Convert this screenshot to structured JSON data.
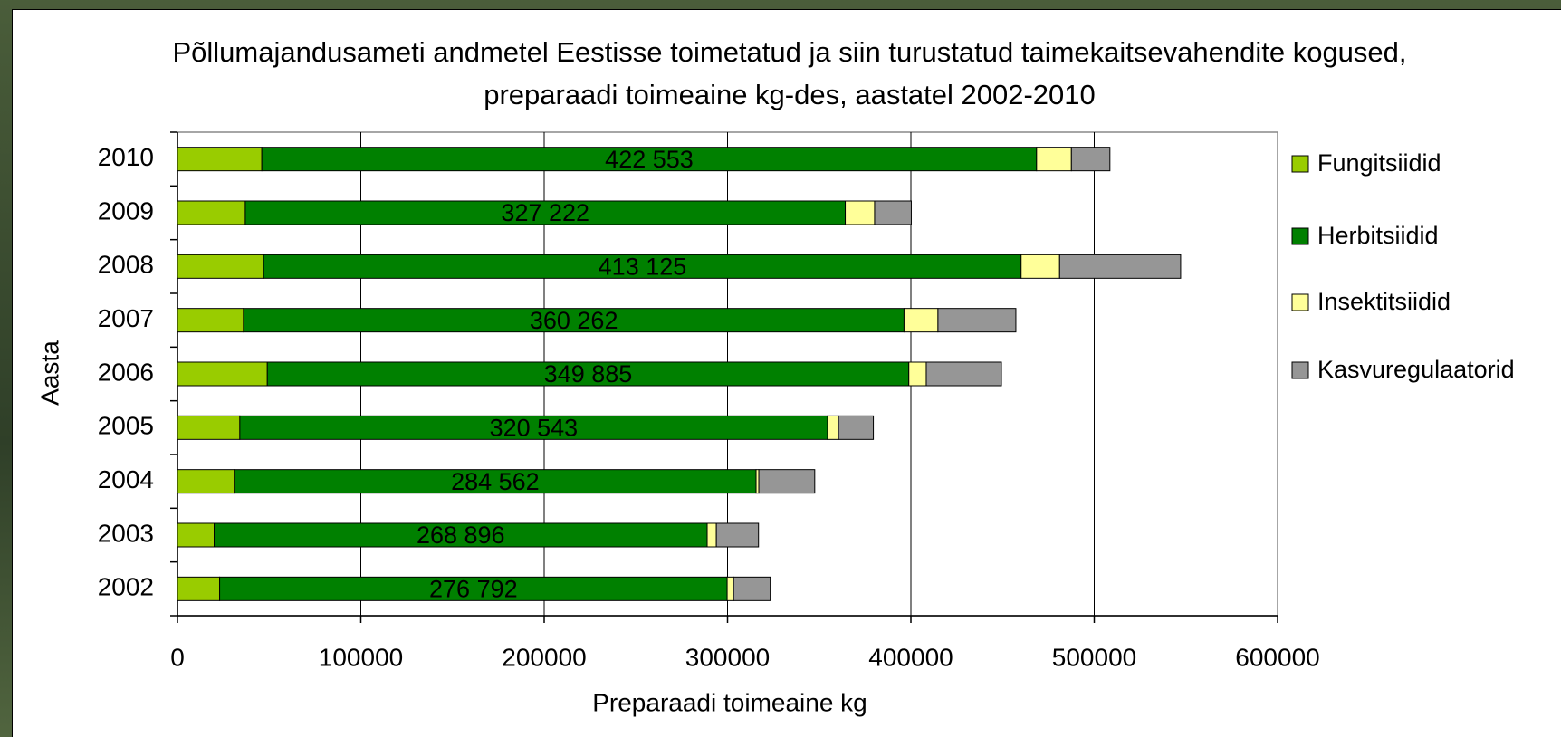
{
  "chart_data": {
    "type": "stacked-bar-horizontal",
    "title": "Põllumajandusameti andmetel Eestisse toimetatud ja siin turustatud taimekaitsevahendite kogused, preparaadi toimeaine kg-des, aastatel 2002-2010",
    "x_label": "Preparaadi toimeaine kg",
    "y_label": "Aasta",
    "categories": [
      "2010",
      "2009",
      "2008",
      "2007",
      "2006",
      "2005",
      "2004",
      "2003",
      "2002"
    ],
    "series": [
      {
        "name": "Fungitsiidid",
        "color": "#99cc00",
        "values": [
          46000,
          37000,
          47000,
          36000,
          49000,
          34000,
          31000,
          20000,
          23000
        ]
      },
      {
        "name": "Herbitsiidid",
        "color": "#008000",
        "values": [
          422553,
          327222,
          413125,
          360262,
          349885,
          320543,
          284562,
          268896,
          276792
        ],
        "value_labels": [
          "422 553",
          "327 222",
          "413 125",
          "360 262",
          "349 885",
          "320 543",
          "284 562",
          "268 896",
          "276 792"
        ]
      },
      {
        "name": "Insektitsiidid",
        "color": "#ffff99",
        "values": [
          19000,
          16000,
          21000,
          18500,
          9500,
          6000,
          1500,
          5000,
          3500
        ]
      },
      {
        "name": "Kasvuregulaatorid",
        "color": "#969696",
        "values": [
          21000,
          20000,
          66000,
          42500,
          41000,
          19000,
          30500,
          23000,
          20000
        ]
      }
    ],
    "xlim": [
      0,
      600000
    ],
    "xticks": [
      0,
      100000,
      200000,
      300000,
      400000,
      500000,
      600000
    ],
    "grid": true,
    "legend": "right"
  }
}
